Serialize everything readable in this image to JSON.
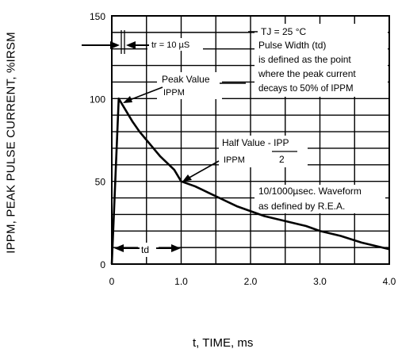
{
  "chart_data": {
    "type": "line",
    "title": "",
    "xlabel": "t, TIME, ms",
    "ylabel": "IPPM, PEAK PULSE CURRENT, %IRSM",
    "xlim": [
      0,
      4.0
    ],
    "ylim": [
      0,
      150
    ],
    "x_ticks": [
      "0",
      "1.0",
      "2.0",
      "3.0",
      "4.0"
    ],
    "y_ticks": [
      "0",
      "50",
      "100",
      "150"
    ],
    "grid": true,
    "series": [
      {
        "points": [
          [
            0,
            0
          ],
          [
            0.1,
            100
          ],
          [
            0.2,
            93
          ],
          [
            0.3,
            86
          ],
          [
            0.4,
            80
          ],
          [
            0.5,
            75
          ],
          [
            0.6,
            70
          ],
          [
            0.7,
            65
          ],
          [
            0.8,
            61
          ],
          [
            0.9,
            57
          ],
          [
            1.0,
            50
          ],
          [
            1.2,
            47
          ],
          [
            1.4,
            43
          ],
          [
            1.6,
            39
          ],
          [
            1.8,
            35
          ],
          [
            2.0,
            32
          ],
          [
            2.2,
            29
          ],
          [
            2.5,
            26
          ],
          [
            2.8,
            23
          ],
          [
            3.0,
            20
          ],
          [
            3.3,
            17
          ],
          [
            3.6,
            13
          ],
          [
            4.0,
            9
          ]
        ]
      }
    ],
    "annotations": {
      "tr": "tr = 10 µS",
      "peak_value": "Peak Value",
      "ippm_peak": "IPPM",
      "conditions": [
        "TJ = 25 °C",
        "Pulse Width (td)",
        "is defined as the point",
        "where the peak current",
        "decays to 50% of IPPM"
      ],
      "half_value": "Half Value - IPP",
      "half_ippm": "IPPM",
      "half_divisor": "2",
      "waveform": [
        "10/1000µsec.  Waveform",
        "as defined by R.E.A."
      ],
      "td": "td"
    }
  }
}
